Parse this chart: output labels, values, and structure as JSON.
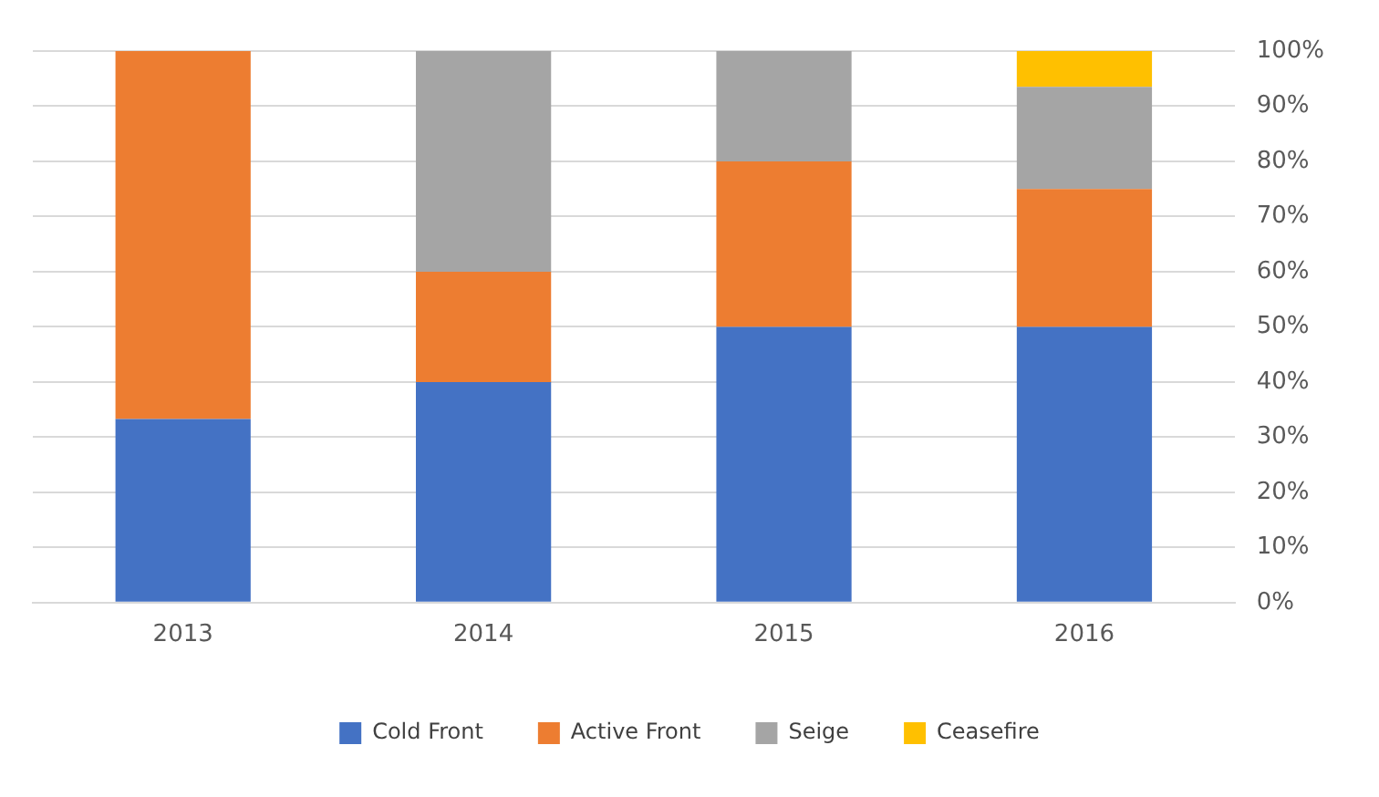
{
  "chart_data": {
    "type": "bar",
    "stacked": true,
    "categories": [
      "2013",
      "2014",
      "2015",
      "2016"
    ],
    "series": [
      {
        "name": "Cold Front",
        "color": "#4472c4",
        "values": [
          33.3,
          40,
          50,
          50
        ]
      },
      {
        "name": "Active Front",
        "color": "#ed7d31",
        "values": [
          66.7,
          20,
          30,
          25
        ]
      },
      {
        "name": "Seige",
        "color": "#a5a5a5",
        "values": [
          0,
          40,
          20,
          18.5
        ]
      },
      {
        "name": "Ceasefire",
        "color": "#ffc000",
        "values": [
          0,
          0,
          0,
          6.5
        ]
      }
    ],
    "ylim": [
      0,
      100
    ],
    "yticks": [
      {
        "value": 0,
        "label": "0%"
      },
      {
        "value": 10,
        "label": "10%"
      },
      {
        "value": 20,
        "label": "20%"
      },
      {
        "value": 30,
        "label": "30%"
      },
      {
        "value": 40,
        "label": "40%"
      },
      {
        "value": 50,
        "label": "50%"
      },
      {
        "value": 60,
        "label": "60%"
      },
      {
        "value": 70,
        "label": "70%"
      },
      {
        "value": 80,
        "label": "80%"
      },
      {
        "value": 90,
        "label": "90%"
      },
      {
        "value": 100,
        "label": "100%"
      }
    ],
    "grid": "y",
    "legend": "bottom"
  }
}
